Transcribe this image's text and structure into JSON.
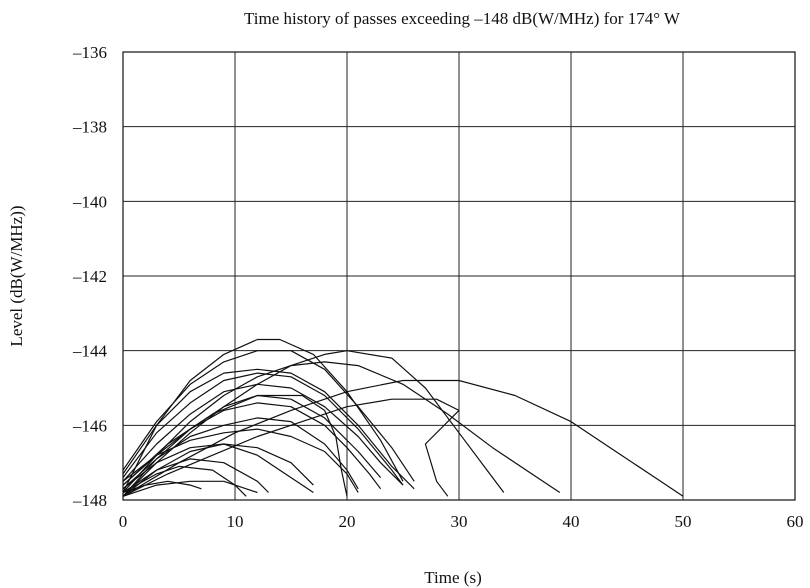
{
  "chart_data": {
    "type": "line",
    "title": "Time history of passes exceeding –148 dB(W/MHz) for 174° W",
    "xlabel": "Time (s)",
    "ylabel": "Level (dB(W/MHz))",
    "xlim": [
      0,
      60
    ],
    "ylim": [
      -148,
      -136
    ],
    "x_ticks": [
      0,
      10,
      20,
      30,
      40,
      50,
      60
    ],
    "x_tick_labels": [
      "0",
      "10",
      "20",
      "30",
      "40",
      "50",
      "60"
    ],
    "y_ticks": [
      -136,
      -138,
      -140,
      -142,
      -144,
      -146,
      -148
    ],
    "y_tick_labels": [
      "–136",
      "–138",
      "–140",
      "–142",
      "–144",
      "–146",
      "–148"
    ],
    "grid": true,
    "legend": "none",
    "series": [
      {
        "points": [
          [
            0,
            -147.8
          ],
          [
            2,
            -147.6
          ],
          [
            4,
            -147.5
          ],
          [
            6,
            -147.6
          ],
          [
            7,
            -147.7
          ]
        ]
      },
      {
        "points": [
          [
            0,
            -147.9
          ],
          [
            3,
            -147.6
          ],
          [
            6,
            -147.5
          ],
          [
            9,
            -147.5
          ],
          [
            11,
            -147.7
          ],
          [
            12,
            -147.8
          ]
        ]
      },
      {
        "points": [
          [
            0,
            -147.8
          ],
          [
            3,
            -147.3
          ],
          [
            5,
            -147.1
          ],
          [
            8,
            -147.2
          ],
          [
            10,
            -147.6
          ],
          [
            11,
            -147.9
          ]
        ]
      },
      {
        "points": [
          [
            0,
            -147.8
          ],
          [
            3,
            -147.2
          ],
          [
            6,
            -146.9
          ],
          [
            9,
            -147.0
          ],
          [
            12,
            -147.5
          ],
          [
            13,
            -147.8
          ]
        ]
      },
      {
        "points": [
          [
            0,
            -147.7
          ],
          [
            3,
            -147.0
          ],
          [
            6,
            -146.6
          ],
          [
            9,
            -146.5
          ],
          [
            12,
            -146.8
          ],
          [
            15,
            -147.4
          ],
          [
            17,
            -147.8
          ]
        ]
      },
      {
        "points": [
          [
            0,
            -147.9
          ],
          [
            3,
            -147.2
          ],
          [
            6,
            -146.7
          ],
          [
            9,
            -146.5
          ],
          [
            12,
            -146.6
          ],
          [
            15,
            -147.0
          ],
          [
            17,
            -147.6
          ]
        ]
      },
      {
        "points": [
          [
            0,
            -147.5
          ],
          [
            3,
            -146.8
          ],
          [
            6,
            -146.4
          ],
          [
            9,
            -146.2
          ],
          [
            12,
            -146.1
          ],
          [
            15,
            -146.3
          ],
          [
            18,
            -146.7
          ],
          [
            20,
            -147.3
          ],
          [
            21,
            -147.8
          ]
        ]
      },
      {
        "points": [
          [
            0,
            -147.7
          ],
          [
            3,
            -146.9
          ],
          [
            6,
            -146.3
          ],
          [
            9,
            -146.0
          ],
          [
            12,
            -145.8
          ],
          [
            15,
            -145.9
          ],
          [
            18,
            -146.5
          ],
          [
            20,
            -147.2
          ],
          [
            21,
            -147.7
          ]
        ]
      },
      {
        "points": [
          [
            0,
            -147.6
          ],
          [
            3,
            -146.8
          ],
          [
            6,
            -146.1
          ],
          [
            9,
            -145.6
          ],
          [
            12,
            -145.4
          ],
          [
            15,
            -145.5
          ],
          [
            18,
            -146.0
          ],
          [
            20,
            -146.6
          ],
          [
            22,
            -147.3
          ],
          [
            23,
            -147.7
          ]
        ]
      },
      {
        "points": [
          [
            0,
            -147.5
          ],
          [
            3,
            -146.5
          ],
          [
            6,
            -145.7
          ],
          [
            9,
            -145.1
          ],
          [
            12,
            -144.9
          ],
          [
            15,
            -145.0
          ],
          [
            18,
            -145.5
          ],
          [
            21,
            -146.3
          ],
          [
            23,
            -147.0
          ],
          [
            25,
            -147.6
          ]
        ]
      },
      {
        "points": [
          [
            0,
            -147.9
          ],
          [
            3,
            -146.9
          ],
          [
            6,
            -146.1
          ],
          [
            9,
            -145.5
          ],
          [
            12,
            -145.2
          ],
          [
            15,
            -145.3
          ],
          [
            18,
            -145.8
          ],
          [
            21,
            -146.7
          ],
          [
            23,
            -147.4
          ]
        ]
      },
      {
        "points": [
          [
            0,
            -147.4
          ],
          [
            3,
            -146.2
          ],
          [
            6,
            -145.4
          ],
          [
            9,
            -144.8
          ],
          [
            12,
            -144.6
          ],
          [
            15,
            -144.7
          ],
          [
            18,
            -145.2
          ],
          [
            21,
            -146.1
          ],
          [
            24,
            -147.2
          ],
          [
            25,
            -147.6
          ]
        ]
      },
      {
        "points": [
          [
            0,
            -147.3
          ],
          [
            3,
            -146.0
          ],
          [
            6,
            -145.1
          ],
          [
            9,
            -144.6
          ],
          [
            12,
            -144.5
          ],
          [
            15,
            -144.6
          ],
          [
            18,
            -145.1
          ],
          [
            21,
            -146.0
          ],
          [
            24,
            -147.1
          ],
          [
            26,
            -147.7
          ]
        ]
      },
      {
        "points": [
          [
            0,
            -147.2
          ],
          [
            3,
            -145.9
          ],
          [
            6,
            -144.9
          ],
          [
            9,
            -144.3
          ],
          [
            12,
            -144.0
          ],
          [
            15,
            -144.0
          ],
          [
            18,
            -144.5
          ],
          [
            21,
            -145.5
          ],
          [
            24,
            -146.6
          ],
          [
            26,
            -147.5
          ]
        ]
      },
      {
        "points": [
          [
            0,
            -147.8
          ],
          [
            3,
            -146.0
          ],
          [
            6,
            -144.8
          ],
          [
            9,
            -144.1
          ],
          [
            12,
            -143.7
          ],
          [
            14,
            -143.7
          ],
          [
            17,
            -144.1
          ],
          [
            20,
            -145.1
          ],
          [
            23,
            -146.4
          ],
          [
            25,
            -147.5
          ]
        ]
      },
      {
        "points": [
          [
            0,
            -147.9
          ],
          [
            3,
            -147.0
          ],
          [
            6,
            -146.2
          ],
          [
            9,
            -145.5
          ],
          [
            12,
            -144.9
          ],
          [
            15,
            -144.4
          ],
          [
            18,
            -144.1
          ],
          [
            20,
            -144.0
          ],
          [
            24,
            -144.2
          ],
          [
            27,
            -145.0
          ],
          [
            30,
            -146.2
          ],
          [
            33,
            -147.4
          ],
          [
            34,
            -147.8
          ]
        ]
      },
      {
        "points": [
          [
            0,
            -147.8
          ],
          [
            3,
            -146.8
          ],
          [
            6,
            -145.9
          ],
          [
            9,
            -145.2
          ],
          [
            12,
            -144.7
          ],
          [
            15,
            -144.4
          ],
          [
            18,
            -144.3
          ],
          [
            21,
            -144.4
          ],
          [
            25,
            -144.9
          ],
          [
            29,
            -145.7
          ],
          [
            33,
            -146.6
          ],
          [
            37,
            -147.4
          ],
          [
            39,
            -147.8
          ]
        ]
      },
      {
        "points": [
          [
            0,
            -147.9
          ],
          [
            5,
            -147.0
          ],
          [
            10,
            -146.2
          ],
          [
            15,
            -145.6
          ],
          [
            20,
            -145.1
          ],
          [
            25,
            -144.8
          ],
          [
            30,
            -144.8
          ],
          [
            35,
            -145.2
          ],
          [
            40,
            -145.9
          ],
          [
            44,
            -146.7
          ],
          [
            48,
            -147.5
          ],
          [
            50,
            -147.9
          ]
        ]
      },
      {
        "points": [
          [
            0,
            -147.9
          ],
          [
            4,
            -147.3
          ],
          [
            8,
            -146.8
          ],
          [
            12,
            -146.3
          ],
          [
            16,
            -145.9
          ],
          [
            20,
            -145.5
          ],
          [
            24,
            -145.3
          ],
          [
            28,
            -145.3
          ],
          [
            30,
            -145.6
          ],
          [
            27,
            -146.5
          ],
          [
            28,
            -147.5
          ],
          [
            29,
            -147.9
          ]
        ]
      },
      {
        "points": [
          [
            0,
            -147.6
          ],
          [
            4,
            -146.5
          ],
          [
            8,
            -145.7
          ],
          [
            12,
            -145.2
          ],
          [
            16,
            -145.2
          ],
          [
            18,
            -145.6
          ],
          [
            19,
            -146.3
          ],
          [
            19.5,
            -147.2
          ],
          [
            20,
            -147.9
          ]
        ]
      }
    ]
  }
}
